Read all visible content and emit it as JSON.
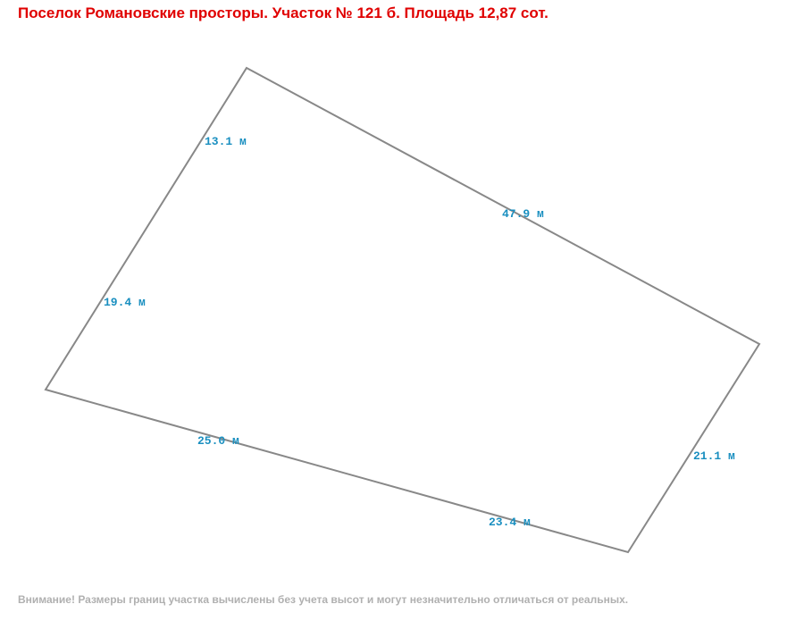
{
  "header": {
    "title": "Поселок Романовские просторы. Участок № 121 б. Площадь 12,87 сот."
  },
  "edges": [
    {
      "label": "13.1 м"
    },
    {
      "label": "47.9 м"
    },
    {
      "label": "19.4 м"
    },
    {
      "label": "21.1 м"
    },
    {
      "label": "25.0 м"
    },
    {
      "label": "23.4 м"
    }
  ],
  "footer": {
    "note": "Внимание! Размеры границ участка вычислены без учета высот и могут незначительно отличаться от реальных."
  }
}
